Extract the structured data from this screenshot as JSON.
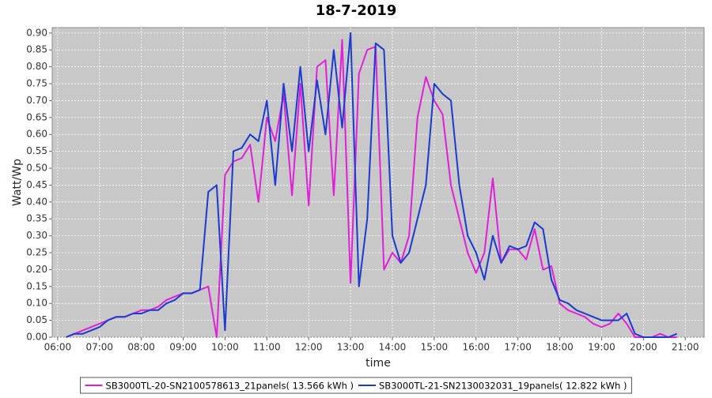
{
  "chart_data": {
    "type": "line",
    "title": "18-7-2019",
    "x_label": "time",
    "y_label": "Watt/Wp",
    "x": [
      6.2,
      6.4,
      6.6,
      6.8,
      7.0,
      7.2,
      7.4,
      7.6,
      7.8,
      8.0,
      8.2,
      8.4,
      8.6,
      8.8,
      9.0,
      9.2,
      9.4,
      9.6,
      9.8,
      10.0,
      10.2,
      10.4,
      10.6,
      10.8,
      11.0,
      11.2,
      11.4,
      11.6,
      11.8,
      12.0,
      12.2,
      12.4,
      12.6,
      12.8,
      13.0,
      13.2,
      13.4,
      13.6,
      13.8,
      14.0,
      14.2,
      14.4,
      14.6,
      14.8,
      15.0,
      15.2,
      15.4,
      15.6,
      15.8,
      16.0,
      16.2,
      16.4,
      16.6,
      16.8,
      17.0,
      17.2,
      17.4,
      17.6,
      17.8,
      18.0,
      18.2,
      18.4,
      18.6,
      18.8,
      19.0,
      19.2,
      19.4,
      19.6,
      19.8,
      20.0,
      20.2,
      20.4,
      20.6,
      20.8
    ],
    "series": [
      {
        "name": "SB3000TL-20-SN2100578613_21panels( 13.566 kWh )",
        "color": "#e020d8",
        "values": [
          0.0,
          0.01,
          0.02,
          0.03,
          0.04,
          0.05,
          0.06,
          0.06,
          0.07,
          0.08,
          0.08,
          0.09,
          0.11,
          0.12,
          0.13,
          0.13,
          0.14,
          0.15,
          0.0,
          0.48,
          0.52,
          0.53,
          0.57,
          0.4,
          0.65,
          0.58,
          0.72,
          0.42,
          0.75,
          0.39,
          0.8,
          0.82,
          0.42,
          0.88,
          0.16,
          0.78,
          0.85,
          0.86,
          0.2,
          0.25,
          0.22,
          0.3,
          0.65,
          0.77,
          0.7,
          0.66,
          0.45,
          0.35,
          0.25,
          0.19,
          0.25,
          0.47,
          0.22,
          0.26,
          0.26,
          0.23,
          0.32,
          0.2,
          0.21,
          0.1,
          0.08,
          0.07,
          0.06,
          0.04,
          0.03,
          0.04,
          0.07,
          0.04,
          0.0,
          0.0,
          0.0,
          0.01,
          0.0,
          0.0
        ]
      },
      {
        "name": "SB3000TL-21-SN2130032031_19panels( 12.822 kWh )",
        "color": "#1a3ad0",
        "values": [
          0.0,
          0.01,
          0.01,
          0.02,
          0.03,
          0.05,
          0.06,
          0.06,
          0.07,
          0.07,
          0.08,
          0.08,
          0.1,
          0.11,
          0.13,
          0.13,
          0.14,
          0.43,
          0.45,
          0.02,
          0.55,
          0.56,
          0.6,
          0.58,
          0.7,
          0.45,
          0.75,
          0.55,
          0.8,
          0.55,
          0.76,
          0.6,
          0.85,
          0.62,
          0.9,
          0.15,
          0.35,
          0.87,
          0.85,
          0.3,
          0.22,
          0.25,
          0.35,
          0.45,
          0.75,
          0.72,
          0.7,
          0.45,
          0.3,
          0.25,
          0.17,
          0.3,
          0.22,
          0.27,
          0.26,
          0.27,
          0.34,
          0.32,
          0.17,
          0.11,
          0.1,
          0.08,
          0.07,
          0.06,
          0.05,
          0.05,
          0.05,
          0.07,
          0.01,
          0.0,
          0.0,
          0.0,
          0.0,
          0.01
        ]
      }
    ],
    "xlim": [
      5.87,
      21.45
    ],
    "xticks": [
      {
        "value": 6,
        "label": "06:00"
      },
      {
        "value": 7,
        "label": "07:00"
      },
      {
        "value": 8,
        "label": "08:00"
      },
      {
        "value": 9,
        "label": "09:00"
      },
      {
        "value": 10,
        "label": "10:00"
      },
      {
        "value": 11,
        "label": "11:00"
      },
      {
        "value": 12,
        "label": "12:00"
      },
      {
        "value": 13,
        "label": "13:00"
      },
      {
        "value": 14,
        "label": "14:00"
      },
      {
        "value": 15,
        "label": "15:00"
      },
      {
        "value": 16,
        "label": "16:00"
      },
      {
        "value": 17,
        "label": "17:00"
      },
      {
        "value": 18,
        "label": "18:00"
      },
      {
        "value": 19,
        "label": "19:00"
      },
      {
        "value": 20,
        "label": "20:00"
      },
      {
        "value": 21,
        "label": "21:00"
      }
    ],
    "ylim": [
      0,
      0.916
    ],
    "yticks": [
      {
        "value": 0,
        "label": "0.00"
      },
      {
        "value": 0.05,
        "label": "0.05"
      },
      {
        "value": 0.1,
        "label": "0.10"
      },
      {
        "value": 0.15,
        "label": "0.15"
      },
      {
        "value": 0.2,
        "label": "0.20"
      },
      {
        "value": 0.25,
        "label": "0.25"
      },
      {
        "value": 0.3,
        "label": "0.30"
      },
      {
        "value": 0.35,
        "label": "0.35"
      },
      {
        "value": 0.4,
        "label": "0.40"
      },
      {
        "value": 0.45,
        "label": "0.45"
      },
      {
        "value": 0.5,
        "label": "0.50"
      },
      {
        "value": 0.55,
        "label": "0.55"
      },
      {
        "value": 0.6,
        "label": "0.60"
      },
      {
        "value": 0.65,
        "label": "0.65"
      },
      {
        "value": 0.7,
        "label": "0.70"
      },
      {
        "value": 0.75,
        "label": "0.75"
      },
      {
        "value": 0.8,
        "label": "0.80"
      },
      {
        "value": 0.85,
        "label": "0.85"
      },
      {
        "value": 0.9,
        "label": "0.90"
      }
    ],
    "grid": true,
    "legend": "bottom"
  }
}
